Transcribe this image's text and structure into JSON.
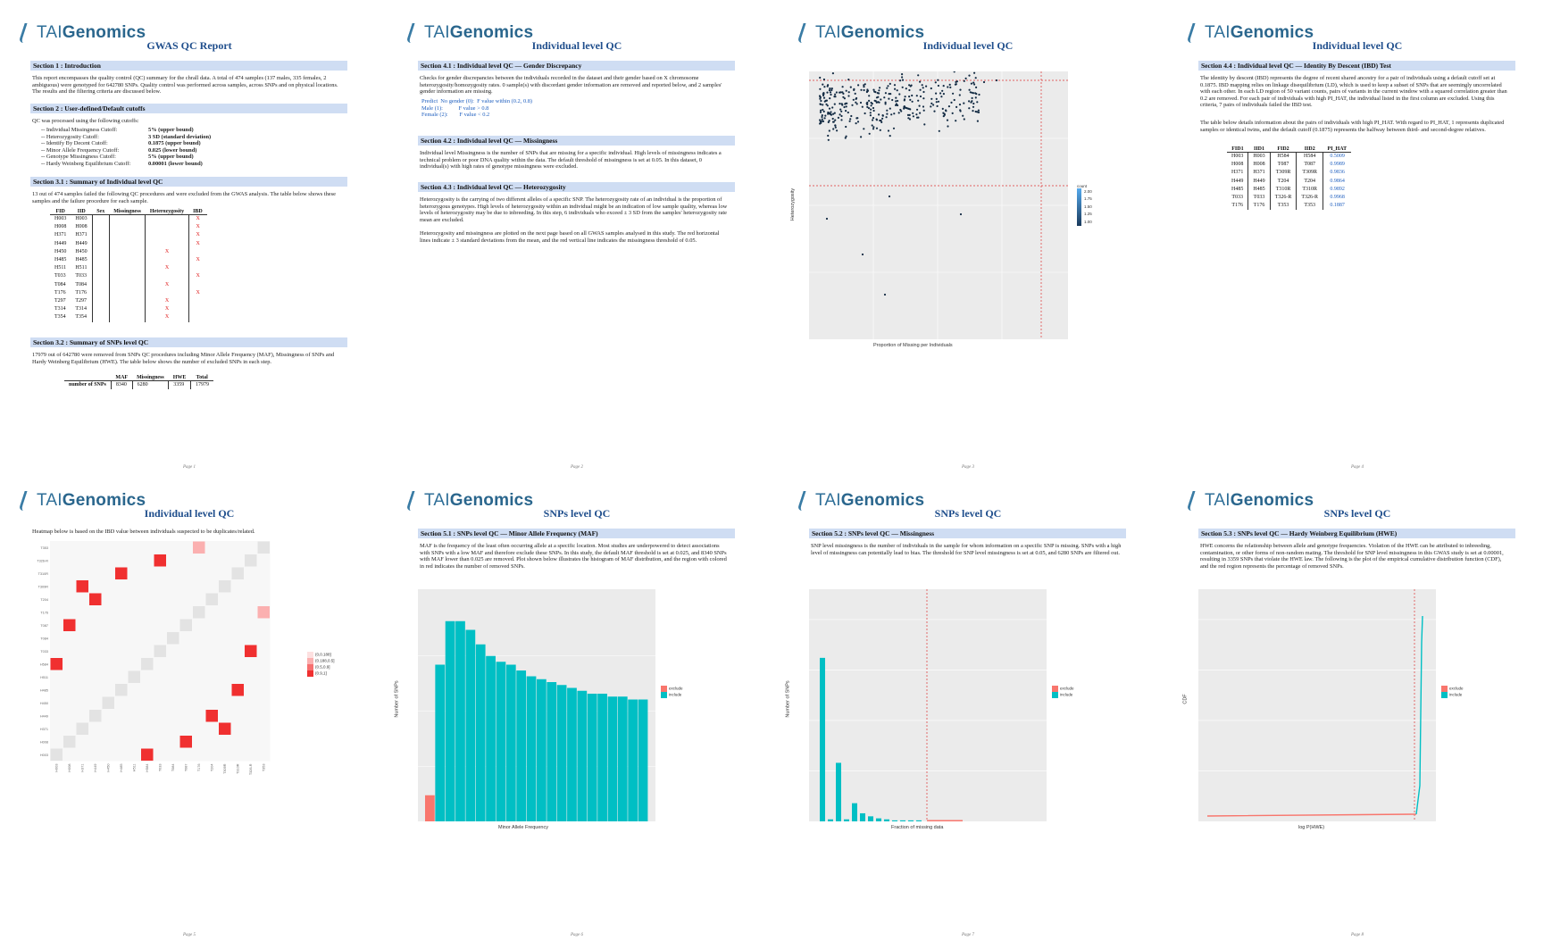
{
  "brand": {
    "logo_prefix": "TAI",
    "logo_suffix": "Genomics"
  },
  "pages": {
    "p1": {
      "title": "GWAS QC Report",
      "s1": "Section 1 : Introduction",
      "s1_text": "This report encompasses the quality control (QC) summary for the chrall data. A total of 474 samples (137 males, 335 females, 2 ambiguous) were genotyped for 642780 SNPs. Quality control was performed across samples, across SNPs and on physical locations. The results and the filtering criteria are discussed below.",
      "s2": "Section 2 : User-defined/Default cutoffs",
      "s2_intro": "QC was processed using the following cutoffs:",
      "cutoffs": [
        {
          "label": "-- Individual Missingness Cutoff:",
          "value": "5% (upper bound)"
        },
        {
          "label": "-- Heterozygosity Cutoff:",
          "value": "3 SD (standard deviation)"
        },
        {
          "label": "-- Identify By Decent Cutoff:",
          "value": "0.1875 (upper bound)"
        },
        {
          "label": "-- Minor Allele Frequency Cutoff:",
          "value": "0.025 (lower bound)"
        },
        {
          "label": "-- Genotype Missingness Cutoff:",
          "value": "5% (upper bound)"
        },
        {
          "label": "-- Hardy Weinberg Equilibrium Cutoff:",
          "value": "0.00001 (lower bound)"
        }
      ],
      "s31": "Section 3.1 : Summary of Individual level QC",
      "s31_text": "13 out of 474 samples failed the following QC procedures and were excluded from the GWAS analysis. The table below shows these samples and the failure procedure for each sample.",
      "sample_headers": [
        "FID",
        "IID",
        "Sex",
        "Missingness",
        "Heterozygosity",
        "IBD"
      ],
      "samples": [
        {
          "fid": "H003",
          "iid": "H003",
          "sex": "",
          "miss": "",
          "het": "",
          "ibd": "X"
        },
        {
          "fid": "H008",
          "iid": "H008",
          "sex": "",
          "miss": "",
          "het": "",
          "ibd": "X"
        },
        {
          "fid": "H371",
          "iid": "H371",
          "sex": "",
          "miss": "",
          "het": "",
          "ibd": "X"
        },
        {
          "fid": "H449",
          "iid": "H449",
          "sex": "",
          "miss": "",
          "het": "",
          "ibd": "X"
        },
        {
          "fid": "H450",
          "iid": "H450",
          "sex": "",
          "miss": "",
          "het": "X",
          "ibd": ""
        },
        {
          "fid": "H485",
          "iid": "H485",
          "sex": "",
          "miss": "",
          "het": "",
          "ibd": "X"
        },
        {
          "fid": "H511",
          "iid": "H511",
          "sex": "",
          "miss": "",
          "het": "X",
          "ibd": ""
        },
        {
          "fid": "T033",
          "iid": "T033",
          "sex": "",
          "miss": "",
          "het": "",
          "ibd": "X"
        },
        {
          "fid": "T084",
          "iid": "T084",
          "sex": "",
          "miss": "",
          "het": "X",
          "ibd": ""
        },
        {
          "fid": "T176",
          "iid": "T176",
          "sex": "",
          "miss": "",
          "het": "",
          "ibd": "X"
        },
        {
          "fid": "T297",
          "iid": "T297",
          "sex": "",
          "miss": "",
          "het": "X",
          "ibd": ""
        },
        {
          "fid": "T314",
          "iid": "T314",
          "sex": "",
          "miss": "",
          "het": "X",
          "ibd": ""
        },
        {
          "fid": "T354",
          "iid": "T354",
          "sex": "",
          "miss": "",
          "het": "X",
          "ibd": ""
        }
      ],
      "s32": "Section 3.2 : Summary of SNPs level QC",
      "s32_text": "17979 out of 642780 were removed from SNPs QC procedures including Minor Allele Frequency (MAF), Missingness of SNPs and Hardy Weinberg Equilibrium (HWE). The table below shows the number of excluded SNPs in each step.",
      "snp_headers": [
        "",
        "MAF",
        "Missingness",
        "HWE",
        "Total"
      ],
      "snp_row": [
        "number of SNPs",
        "8340",
        "6280",
        "3359",
        "17979"
      ],
      "footer": "Page 1"
    },
    "p2": {
      "title": "Individual level QC",
      "s41": "Section 4.1 : Individual level QC — Gender Discrepancy",
      "s41_text": "Checks for gender discrepancies between the individuals recorded in the dataset and their gender based on X chromosome heterozygosity/homozygosity rates. 0 sample(s) with discordant gender information are removed and reported below, and 2 samples' gender information are missing.",
      "gender_rows": [
        "Predict  No gender (0):  F value within (0.2, 0.8)",
        "Male (1):           F value > 0.8",
        "Female (2):        F value < 0.2"
      ],
      "s42": "Section 4.2 : Individual level QC — Missingness",
      "s42_text": "Individual level Missingness is the number of SNPs that are missing for a specific individual. High levels of missingness indicates a technical problem or poor DNA quality within the data. The default threshold of missingness is set at 0.05. In this dataset, 0 individual(s) with high rates of genotype missingness were excluded.",
      "s43": "Section 4.3 : Individual level QC — Heterozygosity",
      "s43_text": "Heterozygosity is the carrying of two different alleles of a specific SNP. The heterozygosity rate of an individual is the proportion of heterozygous genotypes. High levels of heterozygosity within an individual might be an indication of low sample quality, whereas low levels of heterozygosity may be due to inbreeding. In this step, 6 individuals who exceed ± 3 SD from the samples' heterozygosity rate mean are excluded.",
      "s43_text2": "Heterozygosity and missingness are plotted on the next page based on all GWAS samples analysed in this study. The red horizontal lines indicate ± 3 standard deviations from the mean, and the red vertical line indicates the missingness threshold of 0.05.",
      "footer": "Page 2"
    },
    "p3": {
      "title": "Individual level QC",
      "xlabel": "Proportion of Missing per Individuals",
      "ylabel": "Heterozygosity",
      "legend_title": "count",
      "legend_vals": [
        "2.00",
        "1.75",
        "1.50",
        "1.25",
        "1.00"
      ],
      "footer": "Page 3"
    },
    "p4": {
      "title": "Individual level QC",
      "s44": "Section 4.4 : Individual level QC — Identity By Descent (IBD) Test",
      "s44_text": "The identity by descent (IBD) represents the degree of recent shared ancestry for a pair of individuals using a default cutoff set at 0.1875. IBD mapping relies on linkage disequilibrium (LD), which is used to keep a subset of SNPs that are seemingly uncorrelated with each other. In each LD region of 50 variant counts, pairs of variants in the current window with a squared correlation greater than 0.2 are removed. For each pair of individuals with high PI_HAT, the individual listed in the first column are excluded. Using this criteria, 7 pairs of individuals failed the IBD test.",
      "s44_text2": "The table below details information about the pairs of individuals with high PI_HAT. With regard to PI_HAT, 1 represents duplicated samples or identical twins, and the default cutoff (0.1875) represents the halfway between third- and second-degree relatives.",
      "ibd_headers": [
        "FID1",
        "IID1",
        "FID2",
        "IID2",
        "PI_HAT"
      ],
      "ibd_rows": [
        [
          "H003",
          "H003",
          "H584",
          "H584",
          "0.5009"
        ],
        [
          "H008",
          "H008",
          "T087",
          "T087",
          "0.9989"
        ],
        [
          "H371",
          "H371",
          "T309R",
          "T309R",
          "0.9836"
        ],
        [
          "H449",
          "H449",
          "T204",
          "T204",
          "0.9864"
        ],
        [
          "H485",
          "H485",
          "T310R",
          "T310R",
          "0.9892"
        ],
        [
          "T033",
          "T033",
          "T326-R",
          "T326-R",
          "0.9968"
        ],
        [
          "T176",
          "T176",
          "T353",
          "T353",
          "0.1887"
        ]
      ],
      "footer": "Page 4"
    },
    "p5": {
      "title": "Individual level QC",
      "intro": "Heatmap below is based on the IBD value between individuals suspected to be duplicates/related.",
      "heatmap_labels": [
        "H003",
        "H008",
        "H371",
        "H449",
        "H450",
        "H485",
        "H511",
        "H584",
        "T033",
        "T084",
        "T087",
        "T176",
        "T204",
        "T309R",
        "T310R",
        "T326-R",
        "T353"
      ],
      "legend": [
        "(0,0.188]",
        "(0.188,0.5]",
        "(0.5,0.9]",
        "(0.9,1]"
      ],
      "footer": "Page 5"
    },
    "p6": {
      "title": "SNPs level QC",
      "s51": "Section 5.1 : SNPs level QC — Minor Allele Frequency (MAF)",
      "s51_text": "MAF is the frequency of the least often occurring allele at a specific location. Most studies are underpowered to detect associations with SNPs with a low MAF and therefore exclude these SNPs. In this study, the default MAF threshold is set at 0.025, and 8340 SNPs with MAF lower than 0.025 are removed. Plot shown below illustrates the histogram of MAF distribution, and the region with colored in red indicates the number of removed SNPs.",
      "xlabel": "Minor Allele Frequency",
      "ylabel": "Number of SNPs",
      "legend": [
        "exclude",
        "include"
      ],
      "footer": "Page 6"
    },
    "p7": {
      "title": "SNPs level QC",
      "s52": "Section 5.2 : SNPs level QC — Missingness",
      "s52_text": "SNP level missingness is the number of individuals in the sample for whom information on a specific SNP is missing. SNPs with a high level of missingness can potentially lead to bias. The threshold for SNP level missingness is set at 0.05, and 6280 SNPs are filtered out.",
      "xlabel": "Fraction of missing data",
      "ylabel": "Number of SNPs",
      "legend": [
        "exclude",
        "include"
      ],
      "footer": "Page 7"
    },
    "p8": {
      "title": "SNPs level QC",
      "s53": "Section 5.3 : SNPs level QC — Hardy Weinberg Equilibrium (HWE)",
      "s53_text": "HWE concerns the relationship between allele and genotype frequencies. Violation of the HWE can be attributed to inbreeding, contamination, or other forms of non-random mating. The threshold for SNP level missingness in this GWAS study is set at 0.00001, resulting in 3359 SNPs that violate the HWE law. The following is the plot of the empirical cumulative distribution function (CDF), and the red region represents the percentage of removed SNPs.",
      "xlabel": "log P(HWE)",
      "ylabel": "CDF",
      "legend": [
        "exclude",
        "include"
      ],
      "footer": "Page 8"
    }
  },
  "colors": {
    "title": "#1f4e8c",
    "section_bg": "#cfddf3",
    "exclude": "#f8766d",
    "include": "#00bfc4",
    "cut": "#dd3333"
  },
  "chart_data": [
    {
      "type": "scatter",
      "xlabel": "Proportion of Missing per Individuals",
      "ylabel": "Heterozygosity",
      "note": "scatter of individual heterozygosity vs missingness"
    },
    {
      "type": "heatmap",
      "xlabel": "",
      "ylabel": "",
      "labels": [
        "H003",
        "H008",
        "H371",
        "H449",
        "H450",
        "H485",
        "H511",
        "H584",
        "T033",
        "T084",
        "T087",
        "T176",
        "T204",
        "T309R",
        "T310R",
        "T326-R",
        "T353"
      ]
    },
    {
      "type": "bar",
      "xlabel": "Minor Allele Frequency",
      "ylabel": "Number of SNPs",
      "values": [
        9,
        54,
        69,
        69,
        66,
        61,
        57,
        55,
        54,
        52,
        50,
        49,
        48,
        47,
        46,
        45,
        44,
        44,
        43,
        43,
        42,
        42
      ],
      "excluded_bins": 1
    },
    {
      "type": "bar",
      "xlabel": "Fraction of missing data",
      "ylabel": "Number of SNPs",
      "values": [
        162,
        2,
        58,
        2,
        18,
        8,
        5,
        3,
        2,
        1,
        1,
        1,
        1
      ]
    },
    {
      "type": "line",
      "xlabel": "log P(HWE)",
      "ylabel": "CDF"
    }
  ]
}
